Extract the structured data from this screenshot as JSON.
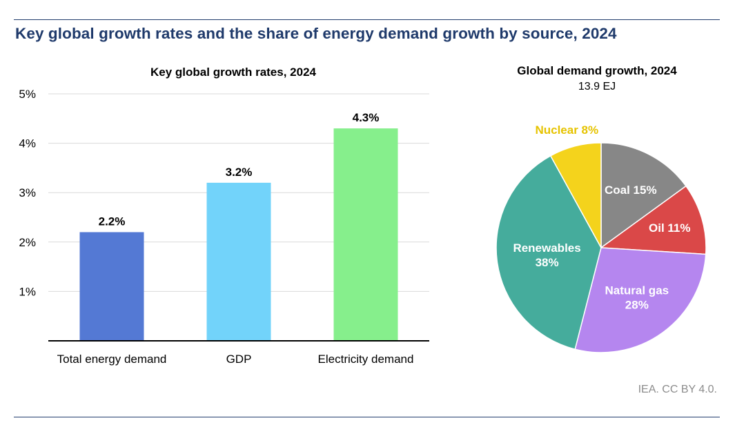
{
  "title": "Key global growth rates and the share of energy demand growth by source, 2024",
  "source": "IEA. CC BY 4.0.",
  "colors": {
    "title": "#1f3a6b",
    "grid": "#d9d9d9",
    "axis": "#000000"
  },
  "chart_data": [
    {
      "type": "bar",
      "title": "Key global growth rates, 2024",
      "categories": [
        "Total energy demand",
        "GDP",
        "Electricity demand"
      ],
      "values": [
        2.2,
        3.2,
        4.3
      ],
      "data_labels": [
        "2.2%",
        "3.2%",
        "4.3%"
      ],
      "colors": [
        "#5479d4",
        "#72d3fa",
        "#86ef8c"
      ],
      "ylim": [
        0,
        5
      ],
      "yticks": [
        1,
        2,
        3,
        4,
        5
      ],
      "ytick_labels": [
        "1%",
        "2%",
        "3%",
        "4%",
        "5%"
      ],
      "grid": true
    },
    {
      "type": "pie",
      "title": "Global demand growth, 2024",
      "subtitle": "13.9 EJ",
      "slices": [
        {
          "label": "Coal",
          "value": 15,
          "display": "Coal 15%",
          "color": "#878787",
          "label_color": "#ffffff"
        },
        {
          "label": "Oil",
          "value": 11,
          "display": "Oil 11%",
          "color": "#da4848",
          "label_color": "#ffffff"
        },
        {
          "label": "Natural gas",
          "value": 28,
          "display": "Natural gas\n28%",
          "color": "#b586ef",
          "label_color": "#ffffff"
        },
        {
          "label": "Renewables",
          "value": 38,
          "display": "Renewables\n38%",
          "color": "#45ac9c",
          "label_color": "#ffffff"
        },
        {
          "label": "Nuclear",
          "value": 8,
          "display": "Nuclear 8%",
          "color": "#f4d31c",
          "label_color": "#e6c300"
        }
      ]
    }
  ]
}
